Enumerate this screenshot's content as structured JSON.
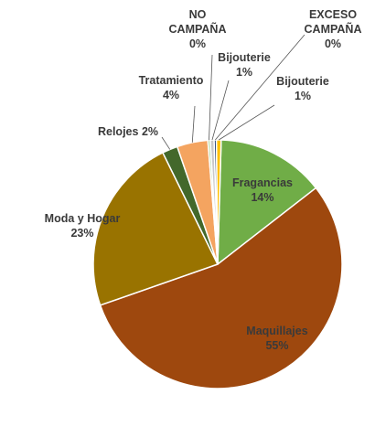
{
  "chart_data": {
    "type": "pie",
    "title": "",
    "slices": [
      {
        "name": "Fragancias",
        "value": 14,
        "label": "14%",
        "color": "#70ad47"
      },
      {
        "name": "Maquillajes",
        "value": 55,
        "label": "55%",
        "color": "#9e480e"
      },
      {
        "name": "Moda y Hogar",
        "value": 23,
        "label": "23%",
        "color": "#997300"
      },
      {
        "name": "Relojes",
        "value": 2,
        "label": "2%",
        "color": "#43682b"
      },
      {
        "name": "Tratamiento",
        "value": 4,
        "label": "4%",
        "color": "#f4a460"
      },
      {
        "name": "NO CAMPAÑA",
        "value": 0.3,
        "label": "0%",
        "color": "#a9d18e"
      },
      {
        "name": "Bijouterie",
        "value": 0.5,
        "label": "1%",
        "color": "#c9c9c9"
      },
      {
        "name": "EXCESO CAMPAÑA",
        "value": 0.3,
        "label": "0%",
        "color": "#264478"
      },
      {
        "name": "Bijouterie",
        "value": 0.6,
        "label": "1%",
        "color": "#ffc000"
      }
    ]
  }
}
